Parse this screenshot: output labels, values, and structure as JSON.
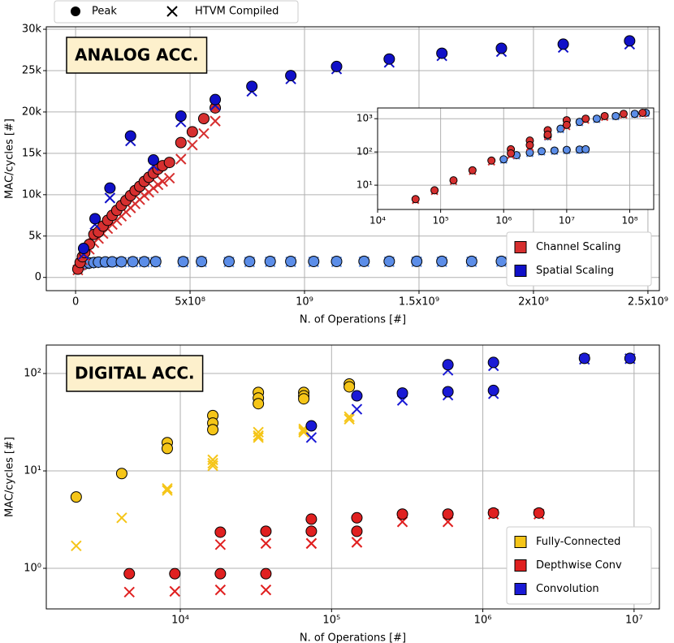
{
  "marker_legend": [
    "Peak",
    "HTVM Compiled"
  ],
  "chart_data": [
    {
      "type": "scatter",
      "annotation": "ANALOG ACC.",
      "x_label": "N. of Operations [#]",
      "y_label": "MAC/cycles [#]",
      "xlim": [
        -128000000,
        2550000000
      ],
      "ylim": [
        -1600,
        30300
      ],
      "grid": true,
      "legend": "lower right",
      "xticks": [
        0,
        {
          "value": 500000000,
          "label": "5x10⁸"
        },
        {
          "value": 1000000000,
          "label": "10⁹"
        },
        {
          "value": 1500000000,
          "label": "1.5x10⁹"
        },
        {
          "value": 2000000000,
          "label": "2x10⁹"
        },
        {
          "value": 2500000000,
          "label": "2.5x10⁹"
        }
      ],
      "yticks": [
        0,
        {
          "value": 5000,
          "label": "5k"
        },
        {
          "value": 10000,
          "label": "10k"
        },
        {
          "value": 15000,
          "label": "15k"
        },
        {
          "value": 20000,
          "label": "20k"
        },
        {
          "value": 25000,
          "label": "25k"
        },
        {
          "value": 30000,
          "label": "30k"
        }
      ],
      "series": [
        {
          "color": "#5b8de8",
          "x": [
            20000000,
            40000000,
            60000000,
            80000000,
            100000000,
            130000000,
            160000000,
            200000000,
            250000000,
            300000000,
            350000000,
            470000000,
            550000000,
            670000000,
            760000000,
            850000000,
            940000000,
            1040000000,
            1140000000,
            1260000000,
            1370000000,
            1490000000,
            1600000000,
            1730000000,
            1860000000
          ],
          "values": [
            1500,
            1650,
            1750,
            1800,
            1850,
            1870,
            1880,
            1890,
            1900,
            1900,
            1910,
            1910,
            1920,
            1920,
            1920,
            1930,
            1930,
            1930,
            1930,
            1940,
            1940,
            1940,
            1940,
            1940,
            1950
          ],
          "compiled": [
            1450,
            1600,
            1700,
            1750,
            1800,
            1820,
            1830,
            1840,
            1850,
            1850,
            1860,
            1860,
            1870,
            1870,
            1870,
            1880,
            1880,
            1880,
            1880,
            1890,
            1890,
            1890,
            1890,
            1890,
            1900
          ]
        },
        {
          "name": "Channel Scaling",
          "color": "#d62f2f",
          "x": [
            10000000,
            20000000,
            30000000,
            40000000,
            60000000,
            80000000,
            100000000,
            120000000,
            140000000,
            160000000,
            180000000,
            200000000,
            220000000,
            240000000,
            260000000,
            280000000,
            300000000,
            320000000,
            340000000,
            360000000,
            380000000,
            410000000,
            460000000,
            510000000,
            560000000,
            610000000
          ],
          "values": [
            1000,
            1800,
            2500,
            3000,
            4000,
            5200,
            5500,
            6200,
            6900,
            7500,
            8100,
            8700,
            9300,
            9900,
            10500,
            11000,
            11600,
            12100,
            12600,
            13100,
            13500,
            13900,
            16300,
            17600,
            19200,
            20500
          ],
          "compiled": [
            900,
            1500,
            2100,
            2600,
            3400,
            4200,
            4700,
            5300,
            5900,
            6400,
            6900,
            7400,
            7900,
            8400,
            8900,
            9400,
            9900,
            10300,
            10800,
            11200,
            11600,
            12000,
            14300,
            16000,
            17400,
            18900
          ]
        },
        {
          "name": "Spatial Scaling",
          "color": "#1010c8",
          "x": [
            35000000,
            85000000,
            150000000,
            240000000,
            340000000,
            460000000,
            610000000,
            770000000,
            940000000,
            1140000000,
            1370000000,
            1600000000,
            1860000000,
            2130000000,
            2420000000
          ],
          "values": [
            3500,
            7100,
            10800,
            17100,
            14200,
            19500,
            21500,
            23100,
            24400,
            25500,
            26400,
            27100,
            27700,
            28200,
            28600
          ],
          "compiled": [
            2800,
            6400,
            9600,
            16500,
            13500,
            18800,
            20800,
            22500,
            24000,
            25200,
            26000,
            26800,
            27300,
            27800,
            28200
          ]
        }
      ]
    },
    {
      "type": "scatter",
      "xscale": "log",
      "yscale": "log",
      "xlim": [
        10000,
        240000000
      ],
      "ylim": [
        1.86,
        2100
      ],
      "grid": true,
      "xticks": [
        {
          "value": 10000,
          "label": "10⁴"
        },
        {
          "value": 100000,
          "label": "10⁵"
        },
        {
          "value": 1000000,
          "label": "10⁶"
        },
        {
          "value": 10000000,
          "label": "10⁷"
        },
        {
          "value": 100000000,
          "label": "10⁸"
        }
      ],
      "yticks": [
        {
          "value": 10,
          "label": "10¹"
        },
        {
          "value": 100,
          "label": "10²"
        },
        {
          "value": 1000,
          "label": "10³"
        }
      ],
      "series": [
        {
          "color": "#5b8de8",
          "x": [
            1000000,
            1600000,
            2600000,
            4000000,
            6400000,
            10000000,
            16000000,
            20000000,
            5000000,
            8000000,
            16000000,
            30000000,
            60000000,
            120000000,
            180000000
          ],
          "values": [
            60,
            80,
            95,
            105,
            110,
            115,
            118,
            120,
            300,
            500,
            800,
            1000,
            1200,
            1400,
            1500
          ],
          "compiled": [
            57,
            76,
            90,
            100,
            105,
            110,
            112,
            114,
            280,
            470,
            760,
            950,
            1150,
            1350,
            1450
          ]
        },
        {
          "color": "#d62f2f",
          "x": [
            40000,
            80000,
            160000,
            320000,
            640000,
            1300000,
            1300000,
            2600000,
            2600000,
            5000000,
            5000000,
            10000000,
            10000000,
            20000000,
            40000000,
            80000000,
            160000000
          ],
          "values": [
            3.8,
            7,
            14,
            28,
            55,
            120,
            90,
            220,
            160,
            450,
            330,
            900,
            650,
            1000,
            1200,
            1400,
            1500
          ],
          "compiled": [
            3.5,
            6.5,
            13,
            26,
            50,
            105,
            80,
            200,
            140,
            400,
            290,
            800,
            580,
            900,
            1100,
            1300,
            1400
          ]
        }
      ]
    },
    {
      "type": "scatter",
      "annotation": "DIGITAL ACC.",
      "x_label": "N. of Operations [#]",
      "y_label": "MAC/cycles [#]",
      "xscale": "log",
      "yscale": "log",
      "xlim": [
        1300,
        14700000
      ],
      "ylim": [
        0.383,
        196
      ],
      "grid": true,
      "legend": "lower right",
      "xticks": [
        {
          "value": 10000,
          "label": "10⁴"
        },
        {
          "value": 100000,
          "label": "10⁵"
        },
        {
          "value": 1000000,
          "label": "10⁶"
        },
        {
          "value": 10000000,
          "label": "10⁷"
        }
      ],
      "yticks": [
        {
          "value": 1,
          "label": "10⁰"
        },
        {
          "value": 10,
          "label": "10¹"
        },
        {
          "value": 100,
          "label": "10²"
        }
      ],
      "series": [
        {
          "name": "Fully-Connected",
          "color": "#f5c518",
          "x": [
            2050,
            4100,
            8200,
            8200,
            16400,
            16400,
            16400,
            32800,
            32800,
            32800,
            65500,
            65500,
            65500,
            131000,
            131000
          ],
          "values": [
            5.4,
            9.4,
            19.5,
            17,
            37,
            31,
            26.5,
            64,
            56,
            49,
            64,
            59,
            55,
            78,
            73
          ],
          "compiled": [
            1.7,
            3.3,
            6.6,
            6.3,
            13,
            12,
            11.3,
            25,
            23,
            22,
            27,
            26,
            25,
            36,
            34
          ]
        },
        {
          "name": "Depthwise Conv",
          "color": "#e02020",
          "x": [
            4600,
            9200,
            18400,
            18400,
            36800,
            36800,
            73500,
            73500,
            147000,
            147000,
            294000,
            588000,
            1176000,
            2350000
          ],
          "values": [
            0.88,
            0.88,
            0.88,
            2.35,
            0.88,
            2.4,
            3.2,
            2.4,
            3.3,
            2.4,
            3.6,
            3.6,
            3.7,
            3.7
          ],
          "compiled": [
            0.57,
            0.58,
            0.6,
            1.75,
            0.6,
            1.8,
            1.8,
            1.8,
            1.85,
            1.85,
            3.0,
            3.0,
            3.6,
            3.6
          ]
        },
        {
          "name": "Convolution",
          "color": "#1a1ad6",
          "x": [
            73500,
            147000,
            294000,
            588000,
            588000,
            1176000,
            1176000,
            4700000,
            9400000
          ],
          "values": [
            29,
            59,
            63,
            123,
            65,
            130,
            67,
            143,
            143
          ],
          "compiled": [
            22,
            43,
            53,
            108,
            60,
            120,
            62,
            140,
            142
          ]
        }
      ]
    }
  ]
}
